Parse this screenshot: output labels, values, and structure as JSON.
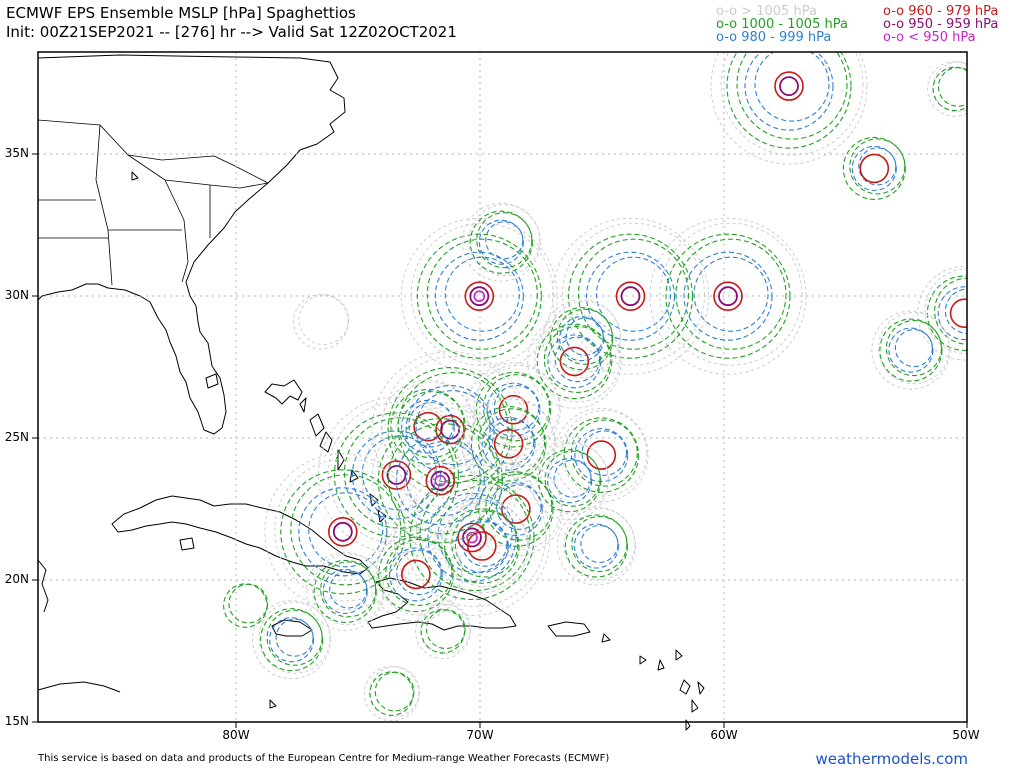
{
  "header": {
    "title": "ECMWF EPS Ensemble MSLP [hPa] Spaghettios",
    "subtitle": "Init: 00Z21SEP2021 -- [276] hr --> Valid Sat 12Z02OCT2021"
  },
  "legend": [
    {
      "label": "o-o > 1005 hPa",
      "color": "#cccccc"
    },
    {
      "label": "o-o 1000 - 1005 hPa",
      "color": "#22a022"
    },
    {
      "label": "o-o 980 - 999 hPa",
      "color": "#2e7fd4"
    },
    {
      "label": "o-o 960 - 979 hPa",
      "color": "#c81a1a"
    },
    {
      "label": "o-o 950 - 959 hPa",
      "color": "#8a0e6e"
    },
    {
      "label": "o-o < 950 hPa",
      "color": "#cc22cc"
    }
  ],
  "axes": {
    "lat_labels": [
      "35N",
      "30N",
      "25N",
      "20N",
      "15N"
    ],
    "lon_labels": [
      "80W",
      "70W",
      "60W",
      "50W"
    ]
  },
  "footer": {
    "credit": "This service is based on data and products of the European Centre for Medium-range Weather Forecasts (ECMWF)",
    "brand": "weathermodels.com"
  },
  "lows": [
    {
      "lat": 30.0,
      "lon": -70.0,
      "levels": [
        ">1005",
        "1000-1005",
        "980-999",
        "960-979",
        "950-959",
        "<950"
      ]
    },
    {
      "lat": 30.0,
      "lon": -63.8,
      "levels": [
        ">1005",
        "1000-1005",
        "980-999",
        "960-979",
        "950-959"
      ]
    },
    {
      "lat": 30.0,
      "lon": -59.8,
      "levels": [
        ">1005",
        "1000-1005",
        "980-999",
        "960-979",
        "950-959"
      ]
    },
    {
      "lat": 37.4,
      "lon": -57.3,
      "levels": [
        ">1005",
        "1000-1005",
        "980-999",
        "960-979",
        "950-959"
      ]
    },
    {
      "lat": 34.5,
      "lon": -53.8,
      "levels": [
        "1000-1005",
        "980-999",
        "960-979"
      ]
    },
    {
      "lat": 29.4,
      "lon": -50.1,
      "levels": [
        ">1005",
        "1000-1005",
        "980-999",
        "960-979"
      ]
    },
    {
      "lat": 28.1,
      "lon": -52.3,
      "levels": [
        ">1005",
        "1000-1005",
        "980-999"
      ]
    },
    {
      "lat": 31.9,
      "lon": -69.1,
      "levels": [
        ">1005",
        "1000-1005",
        "980-999"
      ]
    },
    {
      "lat": 27.7,
      "lon": -66.1,
      "levels": [
        ">1005",
        "1000-1005",
        "980-999",
        "960-979"
      ]
    },
    {
      "lat": 28.5,
      "lon": -65.8,
      "levels": [
        ">1005",
        "1000-1005",
        "980-999"
      ]
    },
    {
      "lat": 26.0,
      "lon": -68.6,
      "levels": [
        ">1005",
        "1000-1005",
        "980-999",
        "960-979"
      ]
    },
    {
      "lat": 25.4,
      "lon": -72.1,
      "levels": [
        ">1005",
        "1000-1005",
        "980-999",
        "960-979"
      ]
    },
    {
      "lat": 25.3,
      "lon": -71.2,
      "levels": [
        ">1005",
        "1000-1005",
        "980-999",
        "960-979",
        "950-959"
      ]
    },
    {
      "lat": 24.8,
      "lon": -68.8,
      "levels": [
        ">1005",
        "1000-1005",
        "980-999",
        "960-979"
      ]
    },
    {
      "lat": 24.4,
      "lon": -65.0,
      "levels": [
        ">1005",
        "1000-1005",
        "980-999",
        "960-979"
      ]
    },
    {
      "lat": 23.7,
      "lon": -73.4,
      "levels": [
        ">1005",
        "1000-1005",
        "980-999",
        "960-979",
        "950-959"
      ]
    },
    {
      "lat": 23.5,
      "lon": -71.6,
      "levels": [
        ">1005",
        "1000-1005",
        "980-999",
        "960-979",
        "950-959",
        "<950"
      ]
    },
    {
      "lat": 23.5,
      "lon": -66.3,
      "levels": [
        ">1005",
        "1000-1005",
        "980-999"
      ]
    },
    {
      "lat": 22.5,
      "lon": -68.5,
      "levels": [
        ">1005",
        "1000-1005",
        "980-999",
        "960-979"
      ]
    },
    {
      "lat": 21.7,
      "lon": -75.6,
      "levels": [
        ">1005",
        "1000-1005",
        "980-999",
        "960-979",
        "950-959"
      ]
    },
    {
      "lat": 21.5,
      "lon": -70.3,
      "levels": [
        ">1005",
        "1000-1005",
        "980-999",
        "960-979",
        "950-959",
        "<950"
      ]
    },
    {
      "lat": 21.2,
      "lon": -69.9,
      "levels": [
        ">1005",
        "1000-1005",
        "980-999",
        "960-979"
      ]
    },
    {
      "lat": 21.2,
      "lon": -65.2,
      "levels": [
        ">1005",
        "1000-1005",
        "980-999"
      ]
    },
    {
      "lat": 20.2,
      "lon": -72.6,
      "levels": [
        ">1005",
        "1000-1005",
        "980-999",
        "960-979"
      ]
    },
    {
      "lat": 19.6,
      "lon": -75.5,
      "levels": [
        ">1005",
        "1000-1005",
        "980-999"
      ]
    },
    {
      "lat": 18.2,
      "lon": -71.5,
      "levels": [
        ">1005",
        "1000-1005"
      ]
    },
    {
      "lat": 17.9,
      "lon": -77.7,
      "levels": [
        ">1005",
        "1000-1005",
        "980-999"
      ]
    },
    {
      "lat": 16.0,
      "lon": -73.6,
      "levels": [
        ">1005",
        "1000-1005"
      ]
    },
    {
      "lat": 19.1,
      "lon": -79.6,
      "levels": [
        "1000-1005"
      ]
    },
    {
      "lat": 29.1,
      "lon": -76.5,
      "levels": [
        ">1005"
      ]
    },
    {
      "lat": 37.3,
      "lon": -50.5,
      "levels": [
        ">1005",
        "1000-1005"
      ]
    }
  ]
}
